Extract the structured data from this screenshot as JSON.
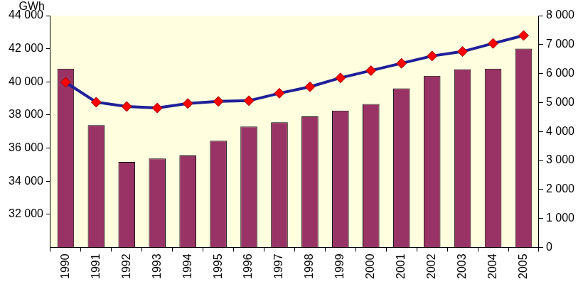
{
  "chart_data": {
    "type": "bar",
    "ylabel": "GWh",
    "categories": [
      "1990",
      "1991",
      "1992",
      "1993",
      "1994",
      "1995",
      "1996",
      "1997",
      "1998",
      "1999",
      "2000",
      "2001",
      "2002",
      "2003",
      "2004",
      "2005"
    ],
    "series": [
      {
        "type": "bar",
        "color": "#993366",
        "axis": "y2",
        "values": [
          6170,
          4220,
          2950,
          3070,
          3170,
          3680,
          4170,
          4320,
          4520,
          4720,
          4950,
          5490,
          5920,
          6150,
          6170,
          6860
        ]
      },
      {
        "type": "line",
        "color": "#1f1f99",
        "marker": "diamond",
        "values": [
          39970,
          38770,
          38510,
          38420,
          38690,
          38820,
          38860,
          39310,
          39700,
          40240,
          40680,
          41120,
          41560,
          41830,
          42320,
          42800
        ]
      }
    ],
    "ylim": [
      30000,
      44000
    ],
    "yticks": [
      {
        "value": 32000,
        "label": "32 000"
      },
      {
        "value": 34000,
        "label": "34 000"
      },
      {
        "value": 36000,
        "label": "36 000"
      },
      {
        "value": 38000,
        "label": "38 000"
      },
      {
        "value": 40000,
        "label": "40 000"
      },
      {
        "value": 42000,
        "label": "42 000"
      },
      {
        "value": 44000,
        "label": "44 000"
      }
    ],
    "y2lim": [
      0,
      8000
    ],
    "y2ticks": [
      0,
      {
        "value": 1000,
        "label": "1 000"
      },
      {
        "value": 2000,
        "label": "2 000"
      },
      {
        "value": 3000,
        "label": "3 000"
      },
      {
        "value": 4000,
        "label": "4 000"
      },
      {
        "value": 5000,
        "label": "5 000"
      },
      {
        "value": 6000,
        "label": "6 000"
      },
      {
        "value": 7000,
        "label": "7 000"
      },
      {
        "value": 8000,
        "label": "8 000"
      }
    ],
    "grid": false
  }
}
